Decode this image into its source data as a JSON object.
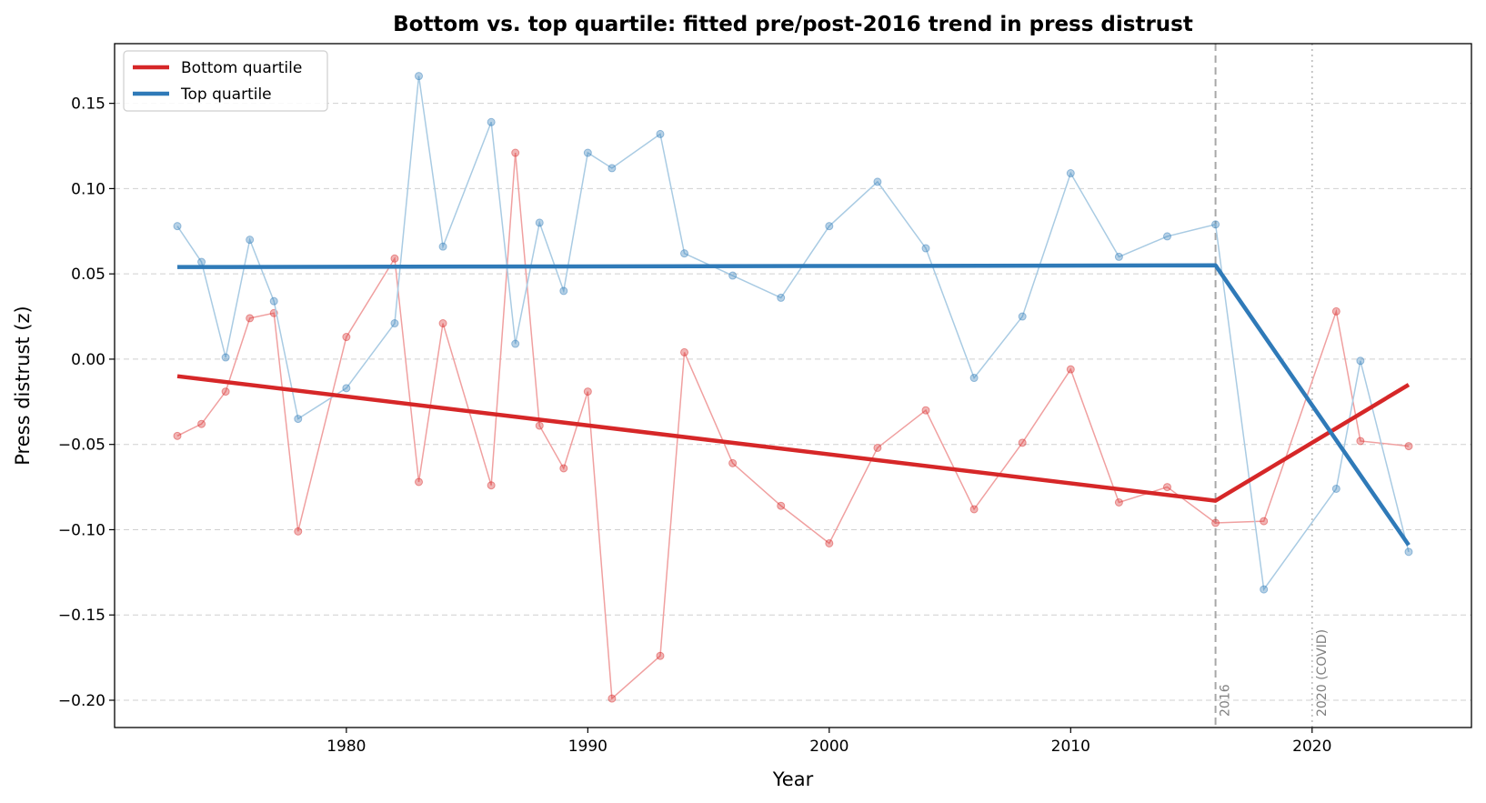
{
  "chart_data": {
    "type": "line",
    "title": "Bottom vs. top quartile: fitted pre/post-2016 trend in press distrust",
    "xlabel": "Year",
    "ylabel": "Press distrust (z)",
    "xlim": [
      1970.4,
      2026.6
    ],
    "ylim": [
      -0.216,
      0.185
    ],
    "xticks": [
      1980,
      1990,
      2000,
      2010,
      2020
    ],
    "xtick_labels": [
      "1980",
      "1990",
      "2000",
      "2010",
      "2020"
    ],
    "yticks": [
      -0.2,
      -0.15,
      -0.1,
      -0.05,
      0.0,
      0.05,
      0.1,
      0.15
    ],
    "ytick_labels": [
      "−0.20",
      "−0.15",
      "−0.10",
      "−0.05",
      "0.00",
      "0.05",
      "0.10",
      "0.15"
    ],
    "grid": "y-dashed",
    "legend_position": "top-left",
    "colors": {
      "bottom": "#d62728",
      "top": "#2f7ab8",
      "bottom_light": "#f0a0a0",
      "top_light": "#a9cbe3",
      "annotation": "#a0a0a0"
    },
    "series": [
      {
        "name": "Bottom quartile",
        "x": [
          1973,
          1974,
          1975,
          1976,
          1977,
          1978,
          1980,
          1982,
          1983,
          1984,
          1986,
          1987,
          1988,
          1989,
          1990,
          1991,
          1993,
          1994,
          1996,
          1998,
          2000,
          2002,
          2004,
          2006,
          2008,
          2010,
          2012,
          2014,
          2016,
          2018,
          2021,
          2022,
          2024
        ],
        "y": [
          -0.045,
          -0.038,
          -0.019,
          0.024,
          0.027,
          -0.101,
          0.013,
          0.059,
          -0.072,
          0.021,
          -0.074,
          0.121,
          -0.039,
          -0.064,
          -0.019,
          -0.199,
          -0.174,
          0.004,
          -0.061,
          -0.086,
          -0.108,
          -0.052,
          -0.03,
          -0.088,
          -0.049,
          -0.006,
          -0.084,
          -0.075,
          -0.096,
          -0.095,
          0.028,
          -0.048,
          -0.051
        ],
        "fit_x": [
          1973,
          2016,
          2024
        ],
        "fit_y": [
          -0.01,
          -0.083,
          -0.015
        ]
      },
      {
        "name": "Top quartile",
        "x": [
          1973,
          1974,
          1975,
          1976,
          1977,
          1978,
          1980,
          1982,
          1983,
          1984,
          1986,
          1987,
          1988,
          1989,
          1990,
          1991,
          1993,
          1994,
          1996,
          1998,
          2000,
          2002,
          2004,
          2006,
          2008,
          2010,
          2012,
          2014,
          2016,
          2018,
          2021,
          2022,
          2024
        ],
        "y": [
          0.078,
          0.057,
          0.001,
          0.07,
          0.034,
          -0.035,
          -0.017,
          0.021,
          0.166,
          0.066,
          0.139,
          0.009,
          0.08,
          0.04,
          0.121,
          0.112,
          0.132,
          0.062,
          0.049,
          0.036,
          0.078,
          0.104,
          0.065,
          -0.011,
          0.025,
          0.109,
          0.06,
          0.072,
          0.079,
          -0.135,
          -0.076,
          -0.001,
          -0.113
        ],
        "fit_x": [
          1973,
          2016,
          2024
        ],
        "fit_y": [
          0.054,
          0.055,
          -0.109
        ]
      }
    ],
    "vlines": [
      {
        "x": 2016,
        "label": "2016",
        "style": "dashed"
      },
      {
        "x": 2020,
        "label": "2020 (COVID)",
        "style": "dotted"
      }
    ]
  }
}
